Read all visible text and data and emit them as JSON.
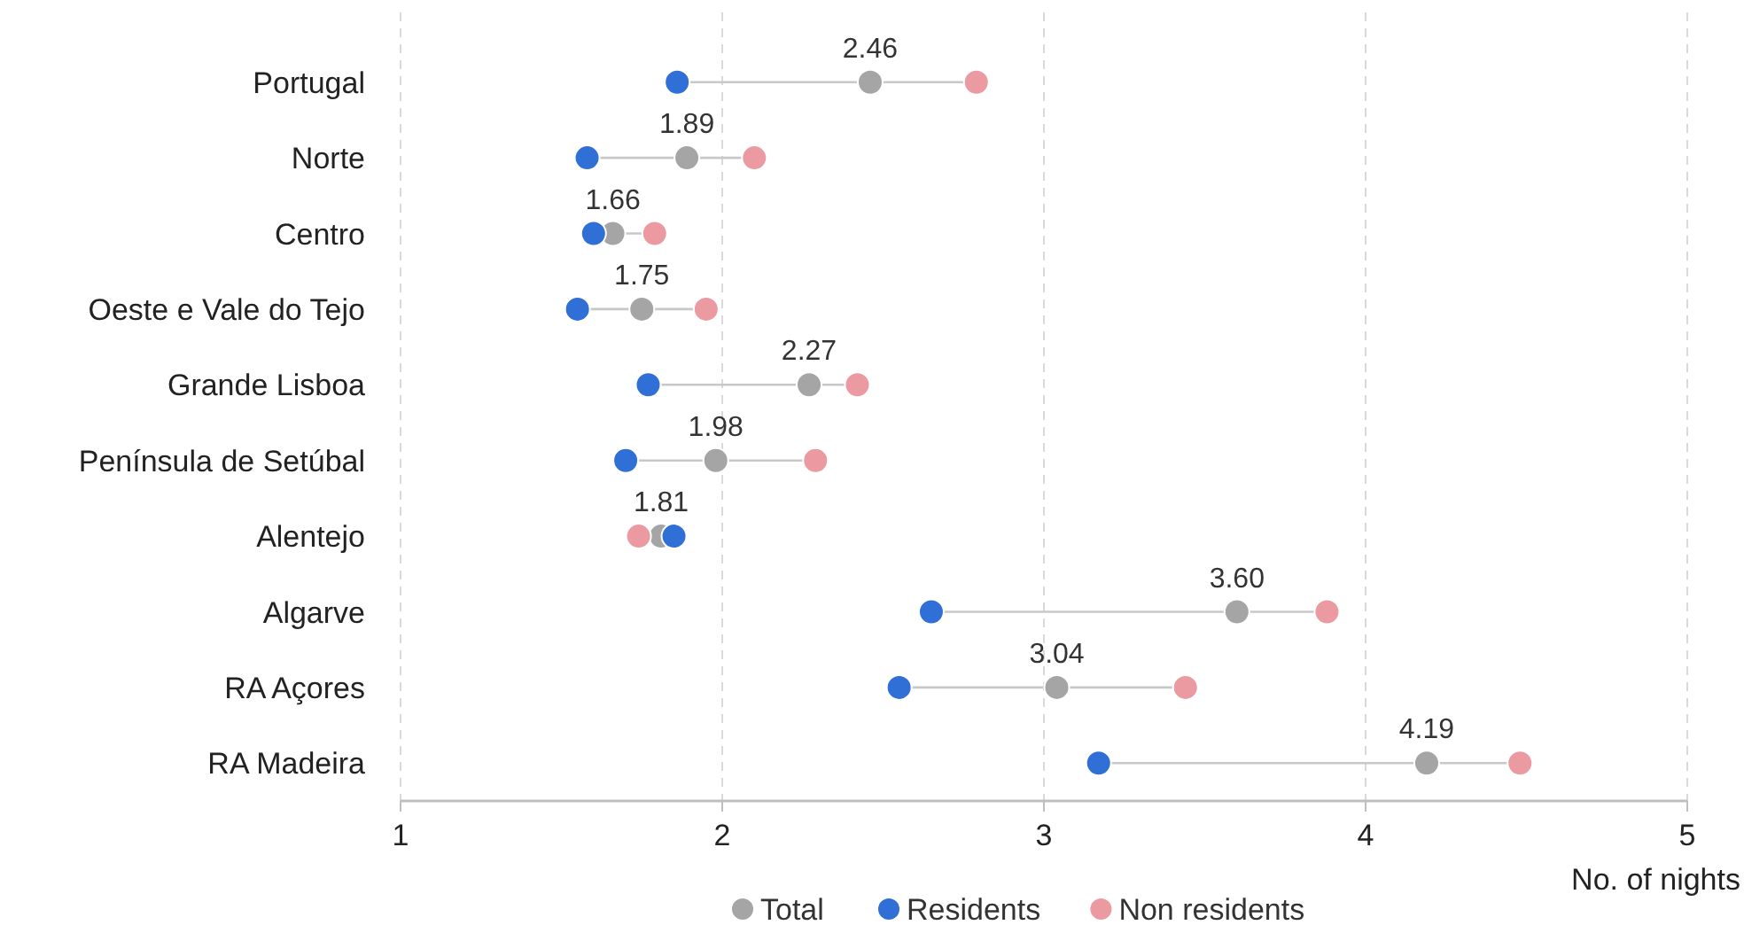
{
  "chart_data": {
    "type": "scatter",
    "orientation": "horizontal",
    "xlabel": "No. of nights",
    "categories": [
      "Portugal",
      "Norte",
      "Centro",
      "Oeste e Vale do  Tejo",
      "Grande Lisboa",
      "Península de Setúbal",
      "Alentejo",
      "Algarve",
      "RA Açores",
      "RA Madeira"
    ],
    "series": [
      {
        "name": "Total",
        "color": "#a5a5a5",
        "values": [
          2.46,
          1.89,
          1.66,
          1.75,
          2.27,
          1.98,
          1.81,
          3.6,
          3.04,
          4.19
        ],
        "value_labels": [
          "2.46",
          "1.89",
          "1.66",
          "1.75",
          "2.27",
          "1.98",
          "1.81",
          "3.60",
          "3.04",
          "4.19"
        ]
      },
      {
        "name": "Residents",
        "color": "#2f6fd6",
        "values": [
          1.86,
          1.58,
          1.6,
          1.55,
          1.77,
          1.7,
          1.85,
          2.65,
          2.55,
          3.17
        ]
      },
      {
        "name": "Non residents",
        "color": "#ea9aa0",
        "values": [
          2.79,
          2.1,
          1.79,
          1.95,
          2.42,
          2.29,
          1.74,
          3.88,
          3.44,
          4.48
        ]
      }
    ],
    "xlim": [
      1,
      5
    ],
    "xticks": [
      1,
      2,
      3,
      4,
      5
    ],
    "grid": "x",
    "legend": "bottom",
    "marker": "circle"
  }
}
